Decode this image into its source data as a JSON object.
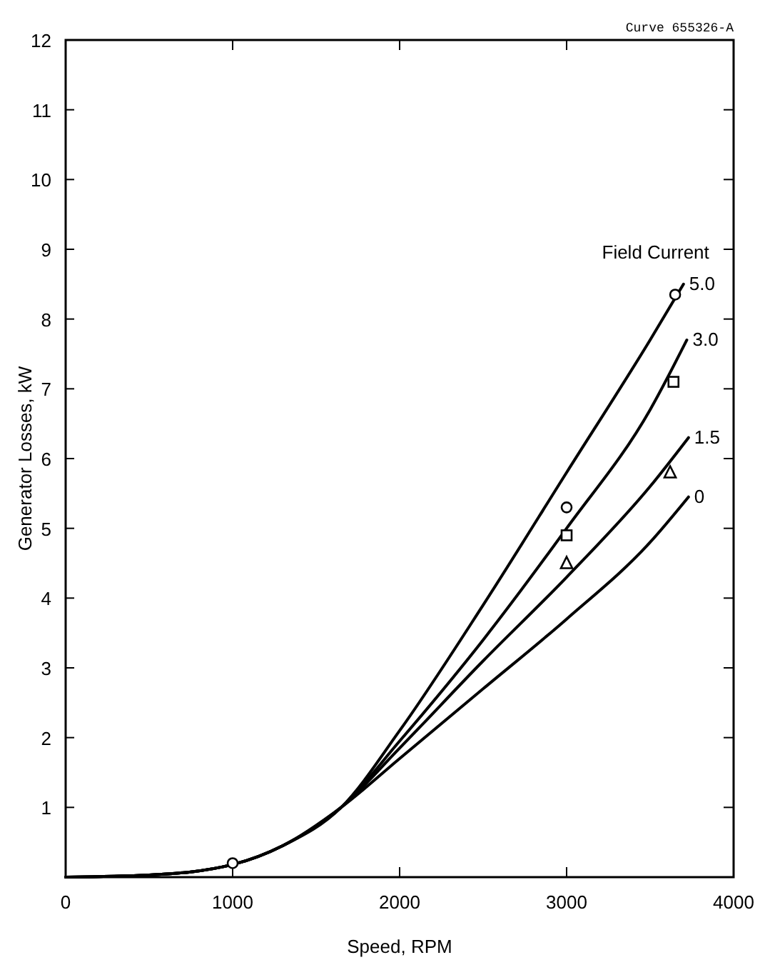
{
  "chart_data": {
    "type": "line",
    "xlabel": "Speed, RPM",
    "ylabel": "Generator Losses, kW",
    "legend_title": "Field Current",
    "annotations": [
      "Curve 655326-A"
    ],
    "xlim": [
      0,
      4000
    ],
    "ylim": [
      0,
      12
    ],
    "xticks": [
      0,
      1000,
      2000,
      3000,
      4000
    ],
    "yticks": [
      1,
      2,
      3,
      4,
      5,
      6,
      7,
      8,
      9,
      10,
      11,
      12
    ],
    "grid": false,
    "legend": "right",
    "line_style": "solid",
    "marker": "none",
    "series": [
      {
        "name": "5.0",
        "color": "#000000",
        "x": [
          0,
          500,
          1000,
          1300,
          1650,
          2000,
          2500,
          3000,
          3500,
          3700
        ],
        "values": [
          0,
          0.03,
          0.18,
          0.45,
          1.0,
          2.1,
          3.9,
          5.8,
          7.7,
          8.5
        ]
      },
      {
        "name": "3.0",
        "color": "#000000",
        "x": [
          0,
          500,
          1000,
          1300,
          1650,
          2000,
          2500,
          3000,
          3500,
          3720
        ],
        "values": [
          0,
          0.03,
          0.18,
          0.45,
          1.0,
          1.95,
          3.4,
          5.0,
          6.7,
          7.7
        ]
      },
      {
        "name": "1.5",
        "color": "#000000",
        "x": [
          0,
          500,
          1000,
          1300,
          1650,
          2000,
          2500,
          3000,
          3500,
          3730
        ],
        "values": [
          0,
          0.03,
          0.18,
          0.45,
          1.0,
          1.85,
          3.1,
          4.3,
          5.6,
          6.3
        ]
      },
      {
        "name": "0",
        "color": "#000000",
        "x": [
          0,
          500,
          1000,
          1300,
          1650,
          2000,
          2500,
          3000,
          3500,
          3730
        ],
        "values": [
          0,
          0.03,
          0.18,
          0.45,
          1.0,
          1.7,
          2.7,
          3.7,
          4.8,
          5.45
        ]
      },
      {
        "type": "scatter",
        "marker": "circle",
        "color": "#000000",
        "x": [
          1000,
          3000,
          3650
        ],
        "values": [
          0.2,
          5.3,
          8.35
        ]
      },
      {
        "type": "scatter",
        "marker": "square",
        "color": "#000000",
        "x": [
          3000,
          3640
        ],
        "values": [
          4.9,
          7.1
        ]
      },
      {
        "type": "scatter",
        "marker": "triangle",
        "color": "#000000",
        "x": [
          3000,
          3620
        ],
        "values": [
          4.5,
          5.8
        ]
      }
    ]
  }
}
